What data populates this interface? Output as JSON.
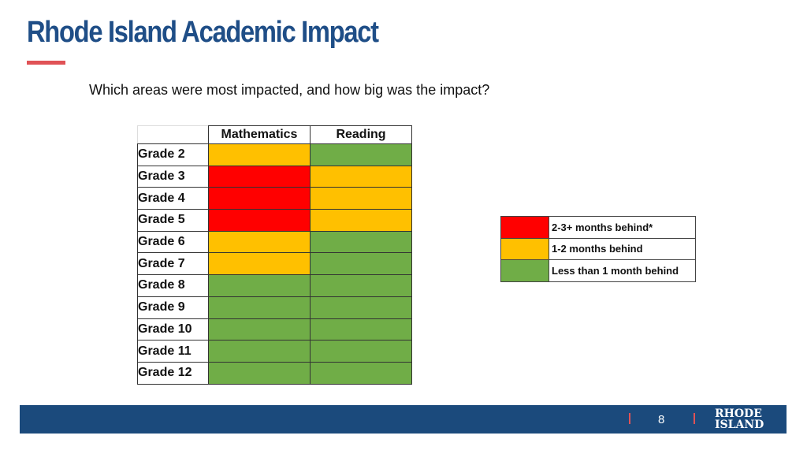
{
  "header": {
    "title": "Rhode Island Academic Impact",
    "subtitle": "Which areas were most impacted, and how big was the impact?"
  },
  "colors": {
    "red": "#ff0000",
    "yellow": "#ffc000",
    "green": "#70ad47",
    "title_blue": "#1f4e87",
    "accent_red": "#e05256",
    "footer_blue": "#1b4a7c"
  },
  "table": {
    "columns": [
      "",
      "Mathematics",
      "Reading"
    ],
    "rows": [
      {
        "grade": "Grade 2",
        "math": "yellow",
        "reading": "green"
      },
      {
        "grade": "Grade 3",
        "math": "red",
        "reading": "yellow"
      },
      {
        "grade": "Grade 4",
        "math": "red",
        "reading": "yellow"
      },
      {
        "grade": "Grade 5",
        "math": "red",
        "reading": "yellow"
      },
      {
        "grade": "Grade 6",
        "math": "yellow",
        "reading": "green"
      },
      {
        "grade": "Grade 7",
        "math": "yellow",
        "reading": "green"
      },
      {
        "grade": "Grade 8",
        "math": "green",
        "reading": "green"
      },
      {
        "grade": "Grade 9",
        "math": "green",
        "reading": "green"
      },
      {
        "grade": "Grade 10",
        "math": "green",
        "reading": "green"
      },
      {
        "grade": "Grade 11",
        "math": "green",
        "reading": "green"
      },
      {
        "grade": "Grade 12",
        "math": "green",
        "reading": "green"
      }
    ]
  },
  "legend": [
    {
      "color": "red",
      "label": "2-3+ months behind*"
    },
    {
      "color": "yellow",
      "label": "1-2 months behind"
    },
    {
      "color": "green",
      "label": "Less than 1 month behind"
    }
  ],
  "footer": {
    "page_number": "8",
    "logo_line1": "RHODE",
    "logo_line2": "ISLAND"
  }
}
